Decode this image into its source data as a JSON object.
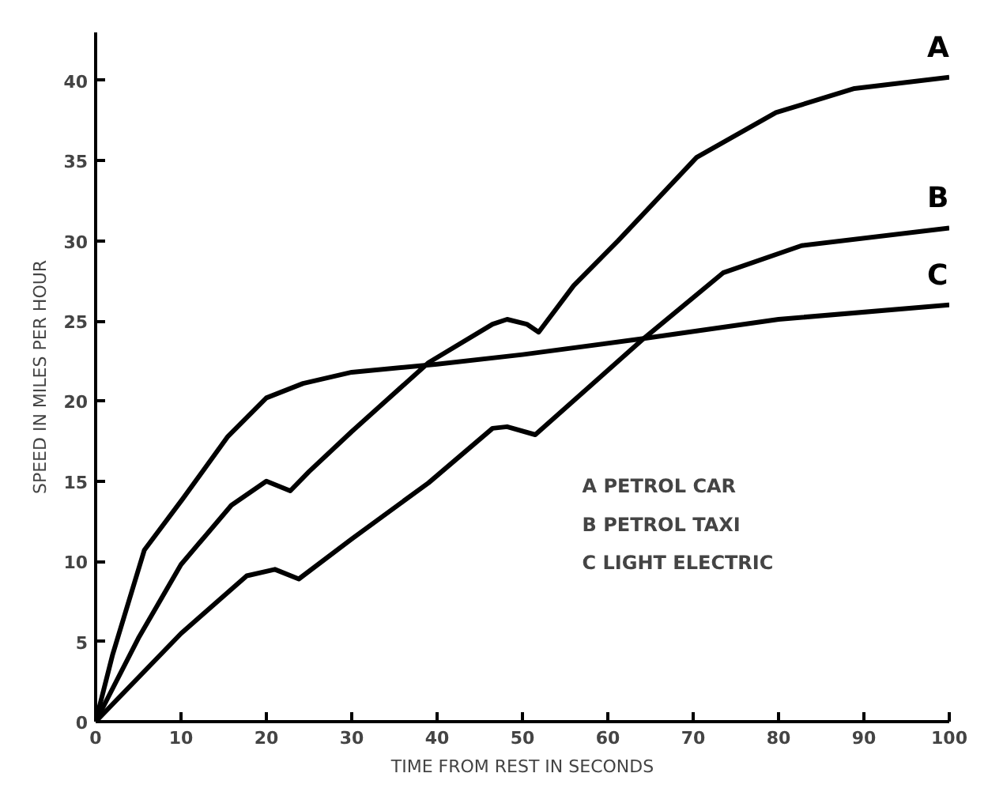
{
  "chart_data": {
    "type": "line",
    "xlabel": "TIME FROM REST IN SECONDS",
    "ylabel": "SPEED IN MILES PER HOUR",
    "xlim": [
      0,
      100
    ],
    "ylim": [
      0,
      43
    ],
    "xticks": [
      0,
      10,
      20,
      30,
      40,
      50,
      60,
      70,
      80,
      90,
      100
    ],
    "yticks": [
      0,
      5,
      10,
      15,
      20,
      25,
      30,
      35,
      40
    ],
    "grid": false,
    "legend": false,
    "marker": "none",
    "line_style": "solid",
    "series": [
      {
        "name": "A",
        "color": "#000000",
        "x": [
          0,
          5,
          10,
          15.9,
          20,
          22.8,
          25,
          30,
          39,
          46.5,
          48.2,
          50.5,
          51.9,
          56,
          61.2,
          70.4,
          79.7,
          88.9,
          100
        ],
        "values": [
          0,
          5.2,
          9.8,
          13.5,
          15.0,
          14.4,
          15.6,
          18.1,
          22.4,
          24.8,
          25.1,
          24.8,
          24.3,
          27.2,
          30.0,
          35.2,
          38.0,
          39.5,
          40.2
        ]
      },
      {
        "name": "B",
        "color": "#000000",
        "x": [
          0,
          10,
          17.7,
          21,
          23.8,
          30,
          39,
          46.5,
          48.2,
          51.5,
          64.2,
          73.5,
          82.7,
          100
        ],
        "values": [
          0,
          5.5,
          9.1,
          9.5,
          8.9,
          11.4,
          14.9,
          18.3,
          18.4,
          17.9,
          23.9,
          28.0,
          29.7,
          30.8
        ]
      },
      {
        "name": "C",
        "color": "#000000",
        "x": [
          0,
          2,
          5.7,
          10.2,
          15.5,
          20,
          24.3,
          30,
          40,
          50,
          64.2,
          80,
          100
        ],
        "values": [
          0,
          4.2,
          10.7,
          13.9,
          17.8,
          20.2,
          21.1,
          21.8,
          22.3,
          22.9,
          23.9,
          25.1,
          26.0
        ]
      }
    ],
    "annotations": [
      "A  PETROL CAR",
      "B  PETROL TAXI",
      "C  LIGHT ELECTRIC"
    ]
  }
}
